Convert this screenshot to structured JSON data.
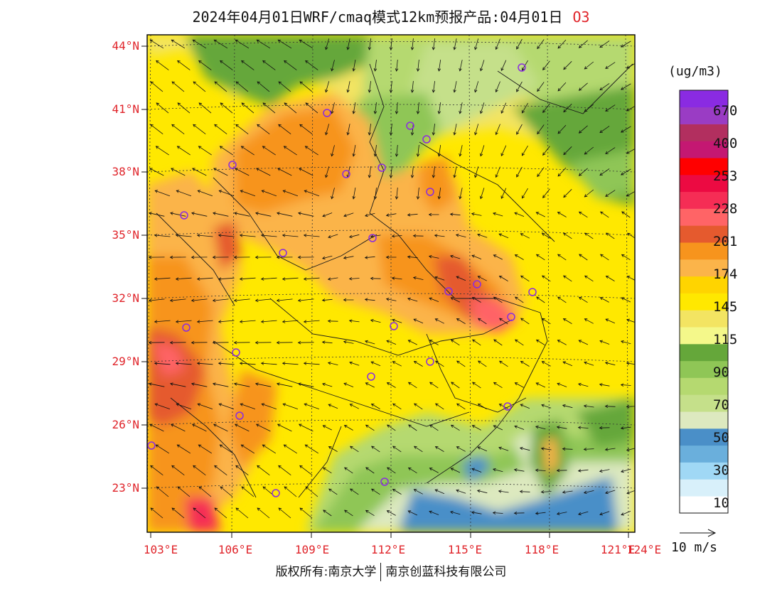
{
  "header": {
    "title": "2024年04月01日WRF/cmaq模式12km预报产品:04月01日",
    "pollutant": "O3"
  },
  "map": {
    "lat_labels": [
      "44°N",
      "41°N",
      "38°N",
      "35°N",
      "32°N",
      "29°N",
      "26°N",
      "23°N"
    ],
    "lon_labels": [
      "103°E",
      "106°E",
      "109°E",
      "112°E",
      "115°E",
      "118°E",
      "121°E",
      "124°E"
    ]
  },
  "legend": {
    "unit": "(ug/m3)",
    "colors": [
      "#ffffff",
      "#d8f0fa",
      "#a0d8f5",
      "#6aafdc",
      "#4a8fc8",
      "#dde9bf",
      "#c5e08a",
      "#b5d970",
      "#8fc656",
      "#65a73a",
      "#f4f88a",
      "#f3e462",
      "#ffe800",
      "#ffd400",
      "#fbb44a",
      "#f7941d",
      "#e55a2e",
      "#ff6466",
      "#f52d55",
      "#ec0a42",
      "#ff0000",
      "#c41872",
      "#b22f5f",
      "#9a3cc4",
      "#8a2be2"
    ],
    "labels": [
      "10",
      "30",
      "50",
      "70",
      "90",
      "115",
      "145",
      "174",
      "201",
      "228",
      "253",
      "400",
      "670"
    ],
    "wind_scale": "10 m/s"
  },
  "footer": {
    "left": "版权所有:南京大学",
    "right": "南京创蓝科技有限公司"
  }
}
